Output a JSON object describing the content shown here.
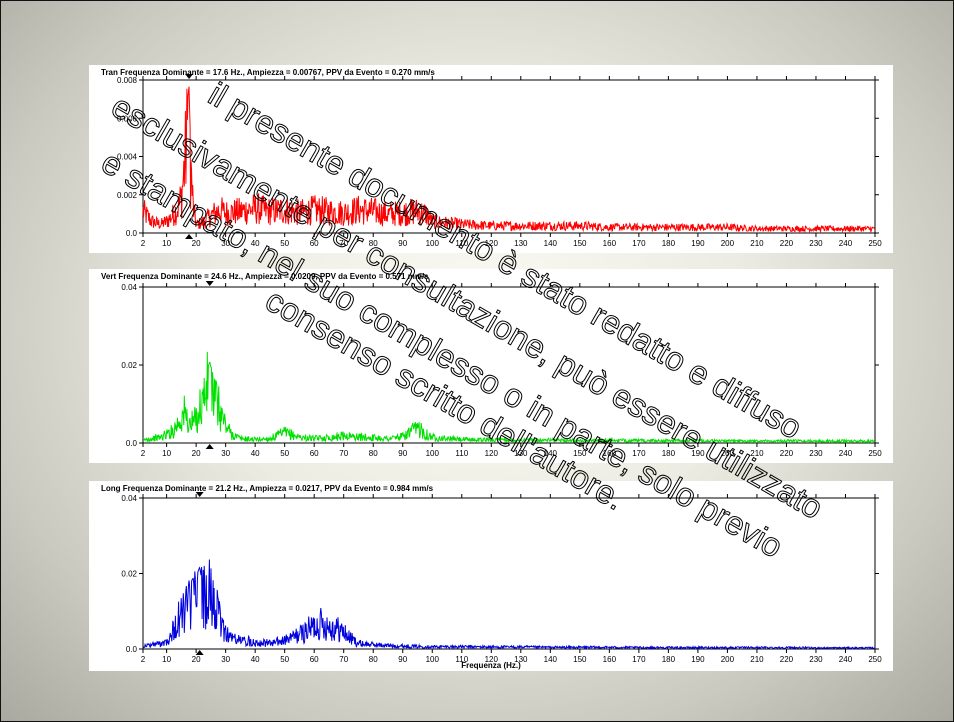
{
  "chart_data": [
    {
      "type": "line",
      "title": "Tran Frequenza Dominante = 17.6 Hz., Ampiezza = 0.00767, PPV da Evento = 0.270 mm/s",
      "xlabel": "",
      "ylabel": "",
      "color": "#ff0000",
      "xlim": [
        2,
        250
      ],
      "ylim": [
        0,
        0.008
      ],
      "x_ticks": [
        "2",
        "10",
        "20",
        "30",
        "40",
        "50",
        "60",
        "70",
        "80",
        "90",
        "100",
        "110",
        "120",
        "130",
        "140",
        "150",
        "160",
        "170",
        "180",
        "190",
        "200",
        "210",
        "220",
        "230",
        "240",
        "250"
      ],
      "y_ticks": [
        "0.0",
        "0.002",
        "0.004",
        "0.006",
        "0.008"
      ],
      "dominant_frequency": 17.6,
      "series": [
        {
          "x": [
            2,
            5,
            8,
            10,
            12,
            14,
            15,
            16,
            17,
            17.6,
            18,
            19,
            20,
            22,
            25,
            28,
            30,
            35,
            40,
            45,
            50,
            55,
            60,
            65,
            70,
            75,
            80,
            85,
            90,
            95,
            98,
            100,
            105,
            110,
            120,
            130,
            140,
            150,
            160,
            170,
            180,
            190,
            200,
            210,
            220,
            230,
            240,
            250
          ],
          "values": [
            0.0015,
            0.0008,
            0.0006,
            0.0008,
            0.0012,
            0.0018,
            0.0025,
            0.0045,
            0.0068,
            0.00767,
            0.0052,
            0.0018,
            0.0006,
            0.0007,
            0.0012,
            0.0016,
            0.0014,
            0.0015,
            0.0017,
            0.0015,
            0.0016,
            0.0014,
            0.0016,
            0.0015,
            0.0014,
            0.0016,
            0.0015,
            0.0013,
            0.0014,
            0.0015,
            0.0013,
            0.0008,
            0.0007,
            0.0006,
            0.0005,
            0.0005,
            0.0005,
            0.0005,
            0.0004,
            0.0004,
            0.0004,
            0.0004,
            0.0004,
            0.0003,
            0.0003,
            0.0003,
            0.0003,
            0.0003
          ]
        }
      ]
    },
    {
      "type": "line",
      "title": "Vert Frequenza Dominante = 24.6 Hz., Ampiezza = 0.0209, PPV da Evento = 0.571 mm/s",
      "xlabel": "",
      "ylabel": "",
      "color": "#00e000",
      "xlim": [
        2,
        250
      ],
      "ylim": [
        0,
        0.04
      ],
      "x_ticks": [
        "2",
        "10",
        "20",
        "30",
        "40",
        "50",
        "60",
        "70",
        "80",
        "90",
        "100",
        "110",
        "120",
        "130",
        "140",
        "150",
        "160",
        "170",
        "180",
        "190",
        "200",
        "210",
        "220",
        "230",
        "240",
        "250"
      ],
      "y_ticks": [
        "0.0",
        "0.02",
        "0.04"
      ],
      "dominant_frequency": 24.6,
      "series": [
        {
          "x": [
            2,
            5,
            8,
            10,
            12,
            14,
            16,
            18,
            20,
            22,
            24.6,
            26,
            28,
            30,
            32,
            35,
            40,
            45,
            50,
            55,
            60,
            65,
            70,
            75,
            80,
            85,
            90,
            94,
            96,
            98,
            100,
            105,
            110,
            120,
            130,
            140,
            150,
            160,
            170,
            180,
            190,
            200,
            210,
            220,
            230,
            240,
            250
          ],
          "values": [
            0.001,
            0.0015,
            0.002,
            0.003,
            0.004,
            0.007,
            0.01,
            0.006,
            0.008,
            0.014,
            0.0209,
            0.016,
            0.011,
            0.006,
            0.003,
            0.0015,
            0.0012,
            0.0015,
            0.0035,
            0.002,
            0.0015,
            0.0018,
            0.0025,
            0.002,
            0.0018,
            0.0015,
            0.0022,
            0.0045,
            0.005,
            0.003,
            0.002,
            0.0015,
            0.0012,
            0.0011,
            0.001,
            0.001,
            0.0009,
            0.0009,
            0.0008,
            0.0008,
            0.0008,
            0.0007,
            0.0007,
            0.0007,
            0.0007,
            0.0007,
            0.0006
          ]
        }
      ]
    },
    {
      "type": "line",
      "title": "Long Frequenza Dominante = 21.2 Hz., Ampiezza = 0.0217, PPV da Evento = 0.984 mm/s",
      "xlabel": "Frequenza (Hz.)",
      "ylabel": "",
      "color": "#0000dd",
      "xlim": [
        2,
        250
      ],
      "ylim": [
        0,
        0.04
      ],
      "x_ticks": [
        "2",
        "10",
        "20",
        "30",
        "40",
        "50",
        "60",
        "70",
        "80",
        "90",
        "100",
        "110",
        "120",
        "130",
        "140",
        "150",
        "160",
        "170",
        "180",
        "190",
        "200",
        "210",
        "220",
        "230",
        "240",
        "250"
      ],
      "y_ticks": [
        "0.0",
        "0.02",
        "0.04"
      ],
      "dominant_frequency": 21.2,
      "series": [
        {
          "x": [
            2,
            5,
            8,
            10,
            12,
            14,
            16,
            18,
            20,
            21.2,
            22,
            24,
            26,
            28,
            30,
            32,
            35,
            40,
            45,
            50,
            55,
            60,
            62,
            65,
            68,
            70,
            72,
            75,
            80,
            85,
            90,
            100,
            110,
            120,
            130,
            140,
            150,
            160,
            170,
            180,
            190,
            200,
            210,
            220,
            230,
            240,
            250
          ],
          "values": [
            0.001,
            0.0015,
            0.002,
            0.003,
            0.006,
            0.01,
            0.014,
            0.016,
            0.019,
            0.0217,
            0.018,
            0.02,
            0.016,
            0.01,
            0.006,
            0.004,
            0.003,
            0.0025,
            0.002,
            0.003,
            0.005,
            0.008,
            0.009,
            0.008,
            0.007,
            0.006,
            0.004,
            0.002,
            0.0015,
            0.0012,
            0.001,
            0.0008,
            0.0008,
            0.0007,
            0.0007,
            0.0006,
            0.0006,
            0.0006,
            0.0005,
            0.0005,
            0.0005,
            0.0005,
            0.0005,
            0.0005,
            0.0004,
            0.0004,
            0.0004
          ]
        }
      ]
    }
  ],
  "watermark": {
    "lines": [
      "il presente documento è stato redatto e diffuso",
      "esclusivamente per consultazione, può essere utilizzato",
      "e stampato, nel suo complesso o in parte,  solo previo",
      "consenso scritto dell'autore."
    ]
  }
}
